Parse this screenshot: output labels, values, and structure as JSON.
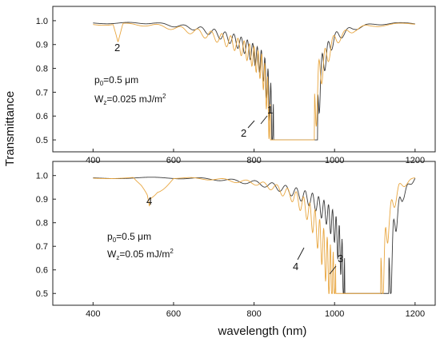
{
  "figure": {
    "ylabel": "Transmittance",
    "xlabel": "wavelength (nm)"
  },
  "colors": {
    "black_series": "#3a3a3a",
    "orange_series": "#e8a640"
  },
  "chart_data": [
    {
      "type": "line",
      "xlim": [
        300,
        1250
      ],
      "ylim": [
        0.45,
        1.06
      ],
      "x_ticks": [
        400,
        600,
        800,
        1000,
        1200
      ],
      "x_tick_labels": [
        "400",
        "600",
        "800",
        "1000",
        "1200"
      ],
      "y_ticks": [
        0.5,
        0.6,
        0.7,
        0.8,
        0.9,
        1.0
      ],
      "y_tick_labels": [
        "0.5",
        "0.6",
        "0.7",
        "0.8",
        "0.9",
        "1.0"
      ],
      "annotation": {
        "p_label": "p",
        "p_sub": "0",
        "p_value": "=0.5 μm",
        "w_label": "W",
        "w_sub": "z",
        "w_value": "=0.025 mJ/m",
        "w_sup": "2"
      },
      "series": [
        {
          "label": "1",
          "color": "#3a3a3a",
          "band_edges": [
            848,
            958
          ],
          "x": [
            400,
            450,
            500,
            550,
            600,
            650,
            700,
            750,
            780,
            800,
            820,
            830,
            840,
            845,
            848,
            850,
            900,
            955,
            958,
            965,
            980,
            1000,
            1050,
            1100,
            1150,
            1200
          ],
          "y": [
            0.99,
            0.99,
            0.99,
            0.99,
            0.98,
            0.97,
            0.95,
            0.92,
            0.89,
            0.86,
            0.82,
            0.76,
            0.66,
            0.56,
            0.5,
            0.5,
            0.5,
            0.5,
            0.55,
            0.78,
            0.86,
            0.93,
            0.97,
            0.985,
            0.99,
            0.985
          ]
        },
        {
          "label": "2",
          "color": "#e8a640",
          "band_edges": [
            840,
            950
          ],
          "dip_center": 462,
          "dip_min": 0.91,
          "x": [
            400,
            450,
            462,
            475,
            500,
            550,
            600,
            650,
            700,
            750,
            780,
            800,
            820,
            830,
            838,
            840,
            900,
            948,
            950,
            960,
            980,
            1000,
            1050,
            1100,
            1150,
            1200
          ],
          "y": [
            0.985,
            0.985,
            0.91,
            0.985,
            0.985,
            0.98,
            0.97,
            0.955,
            0.935,
            0.905,
            0.875,
            0.845,
            0.8,
            0.72,
            0.6,
            0.5,
            0.5,
            0.5,
            0.56,
            0.76,
            0.85,
            0.92,
            0.965,
            0.98,
            0.985,
            0.985
          ]
        }
      ],
      "curve_labels": [
        "1",
        "2",
        "2"
      ]
    },
    {
      "type": "line",
      "xlim": [
        300,
        1250
      ],
      "ylim": [
        0.45,
        1.06
      ],
      "x_ticks": [
        400,
        600,
        800,
        1000,
        1200
      ],
      "x_tick_labels": [
        "400",
        "600",
        "800",
        "1000",
        "1200"
      ],
      "y_ticks": [
        0.5,
        0.6,
        0.7,
        0.8,
        0.9,
        1.0
      ],
      "y_tick_labels": [
        "0.5",
        "0.6",
        "0.7",
        "0.8",
        "0.9",
        "1.0"
      ],
      "annotation": {
        "p_label": "p",
        "p_sub": "0",
        "p_value": "=0.5 μm",
        "w_label": "W",
        "w_sub": "z",
        "w_value": "=0.05 mJ/m",
        "w_sup": "2"
      },
      "series": [
        {
          "label": "3",
          "color": "#3a3a3a",
          "band_edges": [
            1025,
            1135
          ],
          "x": [
            400,
            500,
            600,
            700,
            800,
            850,
            900,
            950,
            980,
            1000,
            1015,
            1022,
            1025,
            1080,
            1135,
            1140,
            1150,
            1170,
            1200
          ],
          "y": [
            0.99,
            0.99,
            0.99,
            0.985,
            0.97,
            0.955,
            0.93,
            0.89,
            0.84,
            0.78,
            0.68,
            0.56,
            0.5,
            0.5,
            0.5,
            0.6,
            0.8,
            0.92,
            0.99
          ]
        },
        {
          "label": "4",
          "color": "#e8a640",
          "band_edges": [
            1003,
            1115
          ],
          "dip_center": 540,
          "dip_min": 0.87,
          "x": [
            400,
            500,
            520,
            540,
            560,
            600,
            700,
            800,
            850,
            900,
            930,
            950,
            970,
            990,
            1000,
            1003,
            1060,
            1115,
            1120,
            1135,
            1160,
            1200
          ],
          "y": [
            0.99,
            0.99,
            0.94,
            0.87,
            0.93,
            0.99,
            0.985,
            0.97,
            0.95,
            0.91,
            0.86,
            0.8,
            0.7,
            0.58,
            0.52,
            0.5,
            0.5,
            0.5,
            0.58,
            0.82,
            0.95,
            0.99
          ]
        }
      ],
      "curve_labels": [
        "4",
        "4",
        "3"
      ]
    }
  ]
}
